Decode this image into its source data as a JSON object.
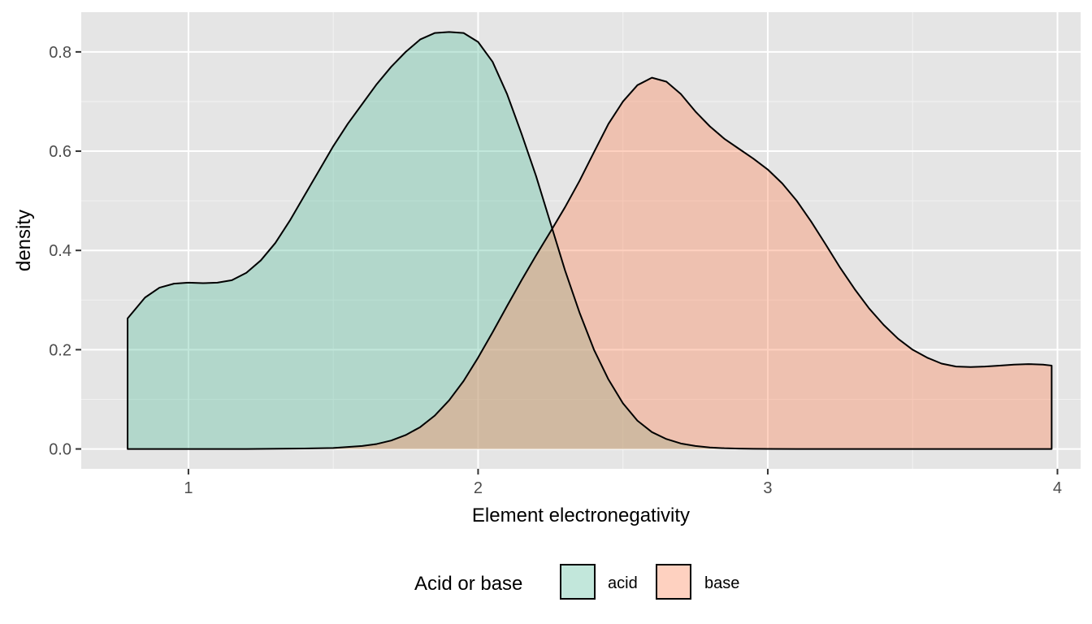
{
  "chart_data": {
    "type": "area",
    "subtype": "density",
    "title": "",
    "xlabel": "Element electronegativity",
    "ylabel": "density",
    "xlim": [
      0.63,
      4.08
    ],
    "ylim": [
      -0.04,
      0.88
    ],
    "x_ticks": [
      1,
      2,
      3,
      4
    ],
    "y_ticks": [
      0.0,
      0.2,
      0.4,
      0.6,
      0.8
    ],
    "x_tick_labels": [
      "1",
      "2",
      "3",
      "4"
    ],
    "y_tick_labels": [
      "0.0",
      "0.2",
      "0.4",
      "0.6",
      "0.8"
    ],
    "grid": true,
    "legend": {
      "title": "Acid or base",
      "position": "bottom"
    },
    "series": [
      {
        "name": "acid",
        "color": "#66c2a5",
        "opacity": 0.4,
        "x": [
          0.79,
          0.85,
          0.9,
          0.95,
          1.0,
          1.05,
          1.1,
          1.15,
          1.2,
          1.25,
          1.3,
          1.35,
          1.4,
          1.45,
          1.5,
          1.55,
          1.6,
          1.65,
          1.7,
          1.75,
          1.8,
          1.85,
          1.9,
          1.95,
          2.0,
          2.05,
          2.1,
          2.15,
          2.2,
          2.25,
          2.3,
          2.35,
          2.4,
          2.45,
          2.5,
          2.55,
          2.6,
          2.65,
          2.7,
          2.75,
          2.8,
          2.85,
          2.9,
          2.95,
          3.0,
          3.1,
          3.2,
          3.3,
          3.5,
          3.7,
          3.98
        ],
        "y": [
          0.263,
          0.305,
          0.325,
          0.333,
          0.335,
          0.334,
          0.335,
          0.34,
          0.355,
          0.38,
          0.415,
          0.46,
          0.51,
          0.56,
          0.61,
          0.655,
          0.695,
          0.735,
          0.77,
          0.8,
          0.825,
          0.838,
          0.84,
          0.838,
          0.82,
          0.78,
          0.715,
          0.635,
          0.55,
          0.455,
          0.36,
          0.275,
          0.2,
          0.14,
          0.092,
          0.057,
          0.034,
          0.02,
          0.011,
          0.006,
          0.003,
          0.0015,
          0.0008,
          0.0004,
          0.0002,
          0.0,
          0.0,
          0.0,
          0.0,
          0.0,
          0.0
        ]
      },
      {
        "name": "base",
        "color": "#fc8d62",
        "opacity": 0.4,
        "x": [
          0.79,
          1.0,
          1.2,
          1.4,
          1.5,
          1.6,
          1.65,
          1.7,
          1.75,
          1.8,
          1.85,
          1.9,
          1.95,
          2.0,
          2.05,
          2.1,
          2.15,
          2.2,
          2.25,
          2.3,
          2.35,
          2.4,
          2.45,
          2.5,
          2.55,
          2.6,
          2.65,
          2.7,
          2.75,
          2.8,
          2.85,
          2.9,
          2.95,
          3.0,
          3.05,
          3.1,
          3.15,
          3.2,
          3.25,
          3.3,
          3.35,
          3.4,
          3.45,
          3.5,
          3.55,
          3.6,
          3.65,
          3.7,
          3.75,
          3.8,
          3.85,
          3.9,
          3.95,
          3.98
        ],
        "y": [
          0.0,
          0.0,
          0.0,
          0.001,
          0.002,
          0.006,
          0.01,
          0.017,
          0.028,
          0.044,
          0.067,
          0.098,
          0.137,
          0.184,
          0.235,
          0.288,
          0.34,
          0.39,
          0.438,
          0.487,
          0.54,
          0.598,
          0.655,
          0.7,
          0.733,
          0.748,
          0.74,
          0.715,
          0.68,
          0.65,
          0.625,
          0.605,
          0.585,
          0.563,
          0.535,
          0.5,
          0.458,
          0.412,
          0.365,
          0.322,
          0.283,
          0.25,
          0.222,
          0.2,
          0.184,
          0.172,
          0.166,
          0.165,
          0.166,
          0.168,
          0.17,
          0.171,
          0.17,
          0.168
        ]
      }
    ]
  }
}
